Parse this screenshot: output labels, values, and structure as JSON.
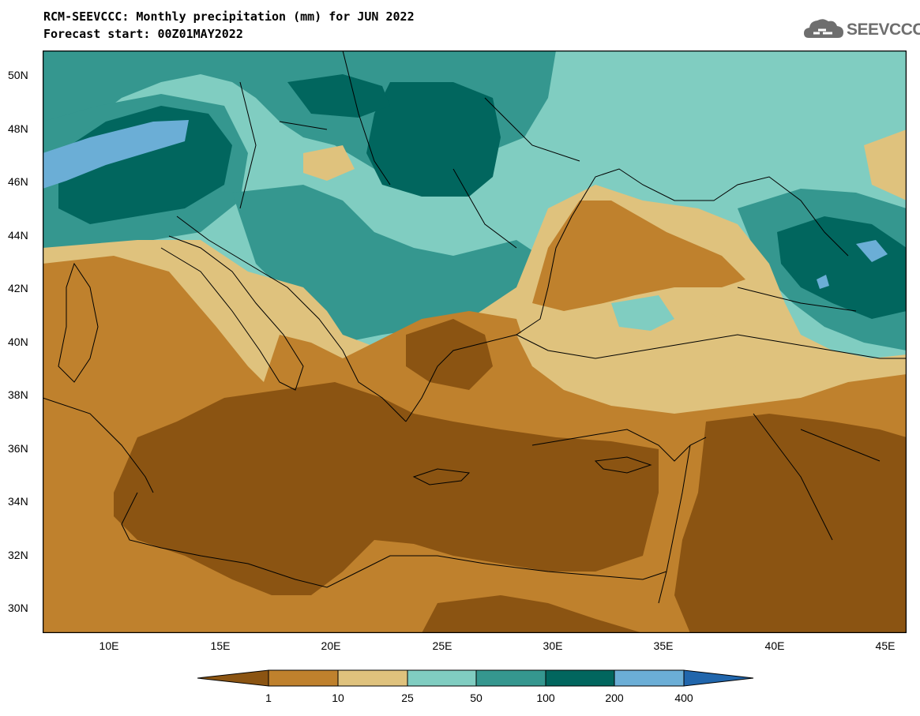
{
  "title": {
    "line1": "RCM-SEEVCCC: Monthly precipitation (mm) for JUN 2022",
    "line2": "Forecast start: 00Z01MAY2022"
  },
  "logo": {
    "text": "SEEVCCC",
    "icon": "cloud-icon",
    "color": "#6e6e6e"
  },
  "map": {
    "lat_range": [
      29,
      51
    ],
    "lon_range": [
      7,
      46
    ],
    "lat_ticks": [
      "50N",
      "48N",
      "46N",
      "44N",
      "42N",
      "40N",
      "38N",
      "36N",
      "34N",
      "32N",
      "30N"
    ],
    "lon_ticks": [
      "10E",
      "15E",
      "20E",
      "25E",
      "30E",
      "35E",
      "40E",
      "45E"
    ]
  },
  "colorbar": {
    "labels": [
      "1",
      "10",
      "25",
      "50",
      "100",
      "200",
      "400"
    ],
    "colors": [
      "#8b5412",
      "#bf812d",
      "#dfc27d",
      "#80cdc1",
      "#35978f",
      "#01665e",
      "#6baed6",
      "#2166ac"
    ]
  }
}
